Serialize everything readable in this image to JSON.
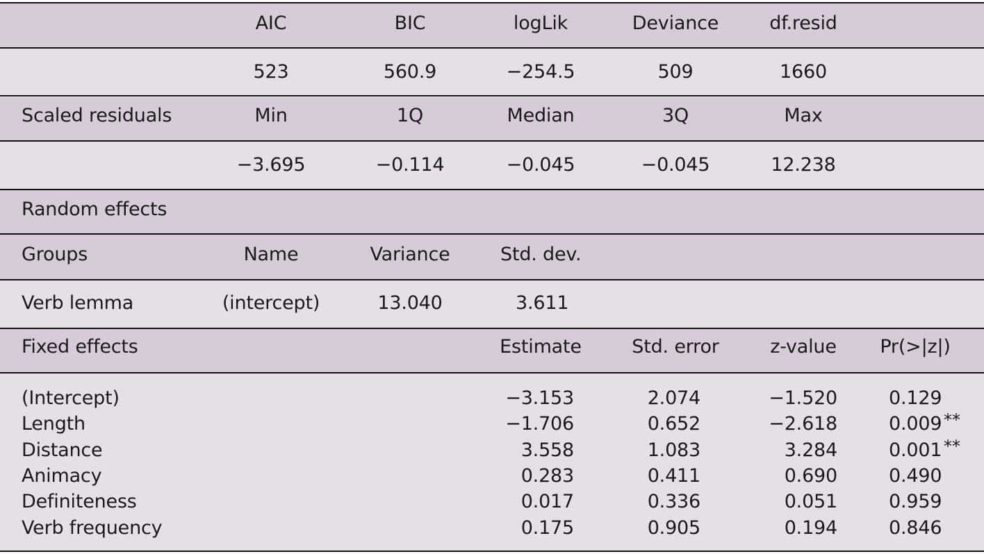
{
  "fit": {
    "headers": [
      "AIC",
      "BIC",
      "logLik",
      "Deviance",
      "df.resid"
    ],
    "values": [
      "523",
      "560.9",
      "−254.5",
      "509",
      "1660"
    ]
  },
  "residuals": {
    "label": "Scaled residuals",
    "headers": [
      "Min",
      "1Q",
      "Median",
      "3Q",
      "Max"
    ],
    "values": [
      "−3.695",
      "−0.114",
      "−0.045",
      "−0.045",
      "12.238"
    ]
  },
  "random": {
    "title": "Random effects",
    "headers": [
      "Groups",
      "Name",
      "Variance",
      "Std. dev."
    ],
    "row": [
      "Verb lemma",
      "(intercept)",
      "13.040",
      "3.611"
    ]
  },
  "fixed": {
    "title": "Fixed effects",
    "headers": [
      "Estimate",
      "Std. error",
      "z-value",
      "Pr(>|z|)"
    ],
    "rows": [
      {
        "term": "(Intercept)",
        "estimate": "−3.153",
        "se": "2.074",
        "z": "−1.520",
        "p": "0.129",
        "sig": ""
      },
      {
        "term": "Length",
        "estimate": "−1.706",
        "se": "0.652",
        "z": "−2.618",
        "p": "0.009",
        "sig": "**"
      },
      {
        "term": "Distance",
        "estimate": "3.558",
        "se": "1.083",
        "z": "3.284",
        "p": "0.001",
        "sig": "**"
      },
      {
        "term": "Animacy",
        "estimate": "0.283",
        "se": "0.411",
        "z": "0.690",
        "p": "0.490",
        "sig": ""
      },
      {
        "term": "Definiteness",
        "estimate": "0.017",
        "se": "0.336",
        "z": "0.051",
        "p": "0.959",
        "sig": ""
      },
      {
        "term": "Verb frequency",
        "estimate": "0.175",
        "se": "0.905",
        "z": "0.194",
        "p": "0.846",
        "sig": ""
      }
    ]
  },
  "colors": {
    "header_row": "#d7cbd9",
    "body_row": "#e7dfe8",
    "rule": "#111111"
  }
}
